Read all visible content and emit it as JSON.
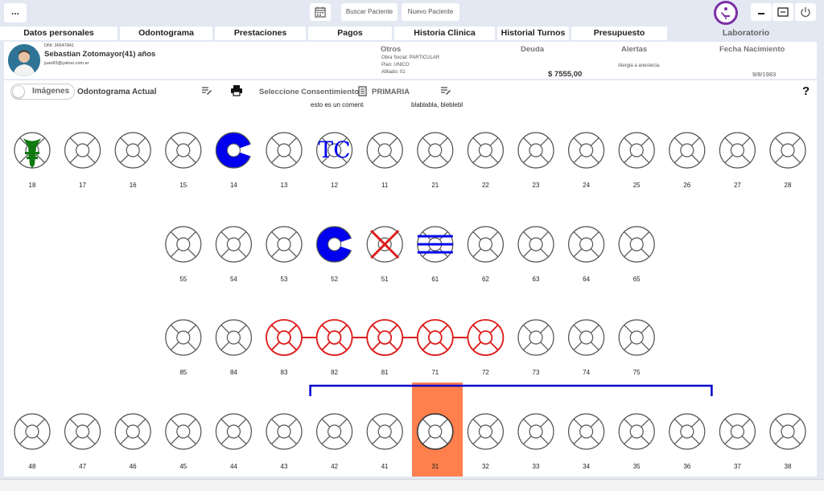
{
  "topbar": {
    "menu_label": "...",
    "buscar_label": "Buscar Paciente",
    "nuevo_label": "Nuevo Paciente"
  },
  "tabs": [
    {
      "label": "Datos personales"
    },
    {
      "label": "Odontograma"
    },
    {
      "label": "Prestaciones"
    },
    {
      "label": "Pagos"
    },
    {
      "label": "Historia Clinica"
    },
    {
      "label": "Historial Turnos"
    },
    {
      "label": "Presupuesto"
    },
    {
      "label": "Laboratorio"
    }
  ],
  "patient": {
    "dni": "DNI: 36547841",
    "name": "Sebastian Zotomayor(41) años",
    "email": "juan83@yahoo.com.ar",
    "otros_title": "Otros",
    "obra_social": "Obra Social: PARTICULAR",
    "plan": "Plan: UNICO",
    "afiliado": "Afiliado: 01",
    "deuda_title": "Deuda",
    "deuda_value": "$ 7555,00",
    "alertas_title": "Alertas",
    "alertas_value": "Alergia a anestecia.",
    "nacimiento_title": "Fecha Nacimiento",
    "nacimiento_value": "9/8/1983"
  },
  "odontogram": {
    "toggle_label": "Imágenes",
    "title": "Odontograma Actual",
    "consent_label": "Seleccione Consentimiento",
    "primaria_label": "PRIMARIA",
    "note1": "esto es un comentario",
    "note2": "blablabla, bleblebl",
    "help": "?",
    "selected_tooth": "31",
    "rows": [
      [
        "18",
        "17",
        "16",
        "15",
        "14",
        "13",
        "12",
        "11",
        "21",
        "22",
        "23",
        "24",
        "25",
        "26",
        "27",
        "28"
      ],
      [
        "55",
        "54",
        "53",
        "52",
        "51",
        "61",
        "62",
        "63",
        "64",
        "65"
      ],
      [
        "85",
        "84",
        "83",
        "82",
        "81",
        "71",
        "72",
        "73",
        "74",
        "75"
      ],
      [
        "48",
        "47",
        "46",
        "45",
        "44",
        "43",
        "42",
        "41",
        "31",
        "32",
        "33",
        "34",
        "35",
        "36",
        "37",
        "38"
      ]
    ],
    "marks": {
      "18": "root-canal",
      "14": "blue-fill",
      "12": "crown-tc",
      "52": "blue-fill",
      "51": "extraction",
      "61": "blue-stripes",
      "83": "bridge",
      "82": "bridge",
      "81": "bridge",
      "71": "bridge",
      "72": "bridge"
    },
    "colors": {
      "blue": "#0000ee",
      "red": "#dd1c1c",
      "green": "#0f7a0f",
      "highlight": "#ff7f4d",
      "tooth_stroke": "#555555"
    }
  }
}
